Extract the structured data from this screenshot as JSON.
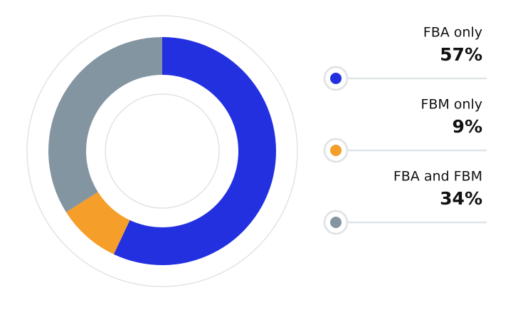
{
  "chart_data": {
    "type": "pie",
    "categories": [
      "FBA only",
      "FBM only",
      "FBA and FBM"
    ],
    "values": [
      57,
      9,
      34
    ],
    "value_labels": [
      "57%",
      "9%",
      "34%"
    ],
    "colors": [
      "#2330e0",
      "#f59e2a",
      "#8495a2"
    ]
  }
}
